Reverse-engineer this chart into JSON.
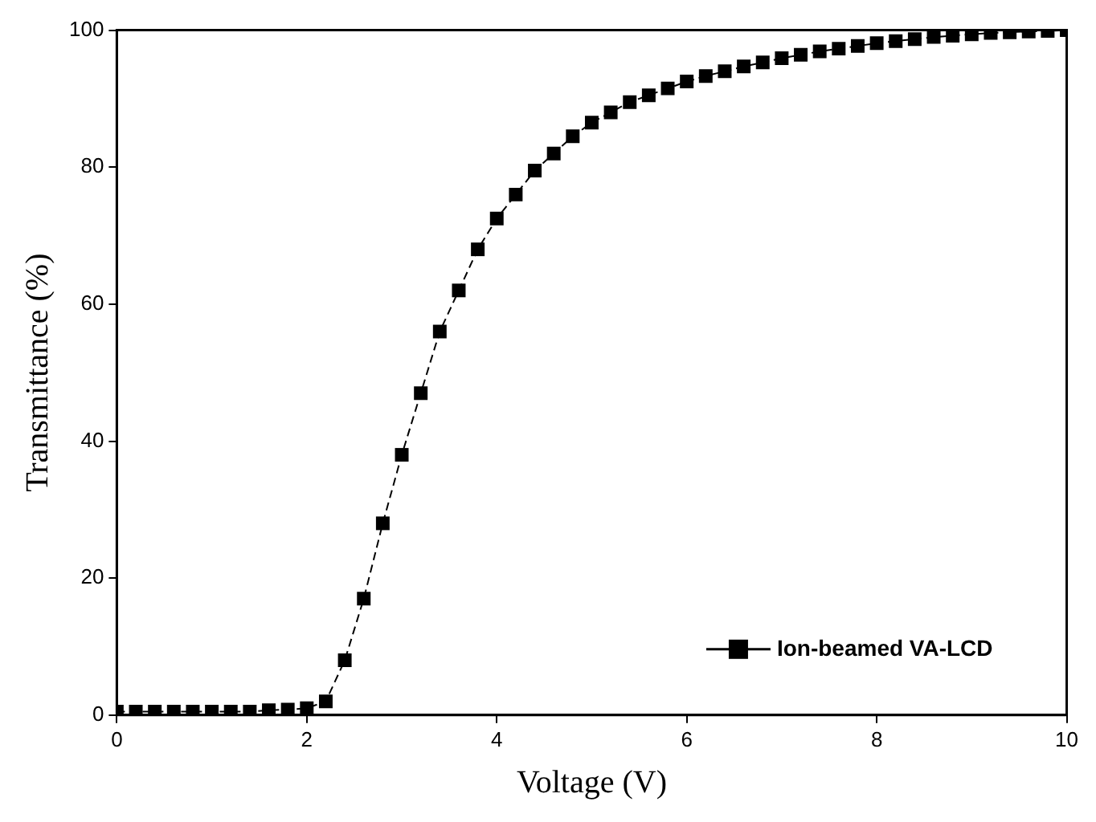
{
  "chart_data": {
    "type": "line",
    "xlabel": "Voltage (V)",
    "ylabel": "Transmittance (%)",
    "x": [
      0,
      0.2,
      0.4,
      0.6,
      0.8,
      1.0,
      1.2,
      1.4,
      1.6,
      1.8,
      2.0,
      2.2,
      2.4,
      2.6,
      2.8,
      3.0,
      3.2,
      3.4,
      3.6,
      3.8,
      4.0,
      4.2,
      4.4,
      4.6,
      4.8,
      5.0,
      5.2,
      5.4,
      5.6,
      5.8,
      6.0,
      6.2,
      6.4,
      6.6,
      6.8,
      7.0,
      7.2,
      7.4,
      7.6,
      7.8,
      8.0,
      8.2,
      8.4,
      8.6,
      8.8,
      9.0,
      9.2,
      9.4,
      9.6,
      9.8,
      10.0
    ],
    "series": [
      {
        "name": "Ion-beamed VA-LCD",
        "color": "#000000",
        "values": [
          0.5,
          0.5,
          0.5,
          0.5,
          0.5,
          0.5,
          0.5,
          0.5,
          0.7,
          0.8,
          1,
          2,
          8,
          17,
          28,
          38,
          47,
          56,
          62,
          68,
          72.5,
          76,
          79.5,
          82,
          84.5,
          86.5,
          88,
          89.5,
          90.5,
          91.5,
          92.5,
          93.3,
          94,
          94.7,
          95.3,
          95.9,
          96.4,
          96.9,
          97.3,
          97.7,
          98.1,
          98.4,
          98.7,
          99,
          99.2,
          99.4,
          99.6,
          99.7,
          99.8,
          99.9,
          100
        ]
      }
    ],
    "xlim": [
      0,
      10
    ],
    "xticks": [
      0,
      2,
      4,
      6,
      8,
      10
    ],
    "ylim": [
      0,
      100
    ],
    "yticks": [
      0,
      20,
      40,
      60,
      80,
      100
    ],
    "grid": false,
    "legend": "bottom right",
    "marker": "square",
    "line_style": "dashed"
  }
}
